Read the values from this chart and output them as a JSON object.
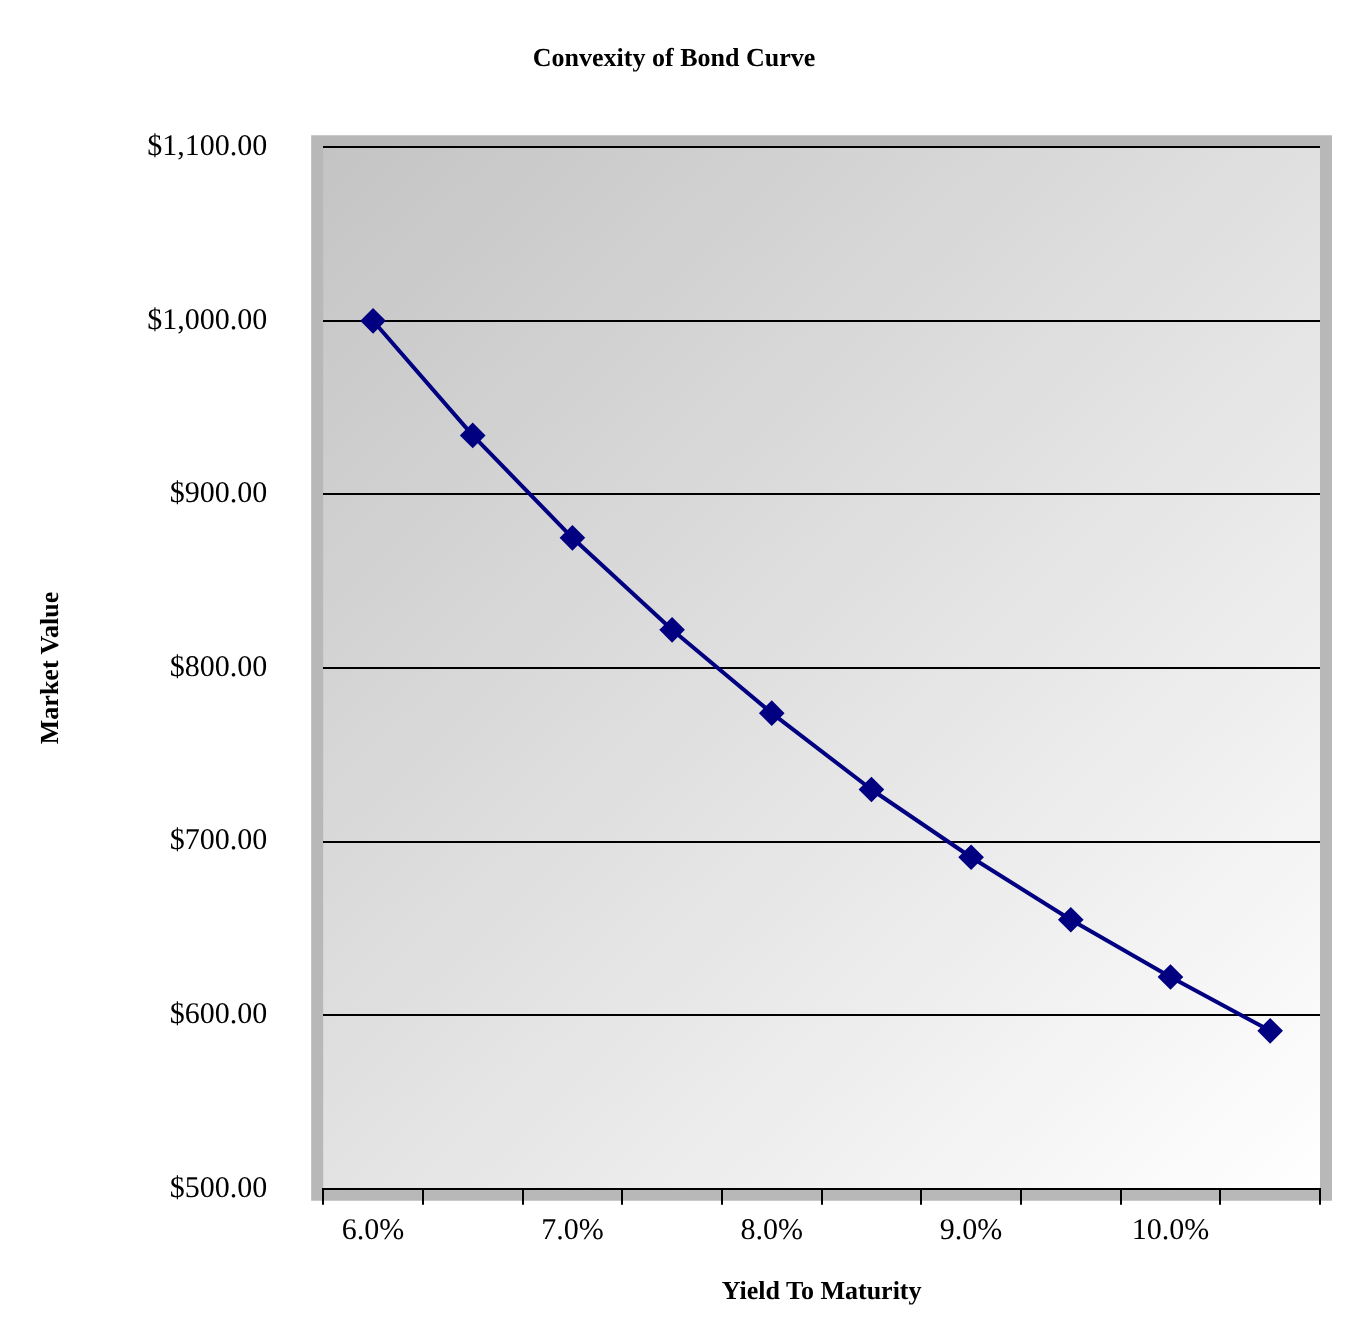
{
  "chart_data": {
    "type": "line",
    "title": "Convexity of Bond Curve",
    "xlabel": "Yield To Maturity",
    "ylabel": "Market Value",
    "categories": [
      "6.0%",
      null,
      "7.0%",
      null,
      "8.0%",
      null,
      "9.0%",
      null,
      "10.0%",
      null
    ],
    "series": [
      {
        "color": "#000080",
        "values": [
          1000,
          934,
          875,
          822,
          774,
          730,
          691,
          655,
          622,
          591
        ]
      }
    ],
    "ylim": [
      500,
      1100
    ],
    "yticks": [
      {
        "value": 500,
        "label": "$500.00"
      },
      {
        "value": 600,
        "label": "$600.00"
      },
      {
        "value": 700,
        "label": "$700.00"
      },
      {
        "value": 800,
        "label": "$800.00"
      },
      {
        "value": 900,
        "label": "$900.00"
      },
      {
        "value": 1000,
        "label": "$1,000.00"
      },
      {
        "value": 1100,
        "label": "$1,100.00"
      }
    ],
    "grid": "y",
    "legend": false,
    "marker": "diamond",
    "line_style": "solid"
  }
}
